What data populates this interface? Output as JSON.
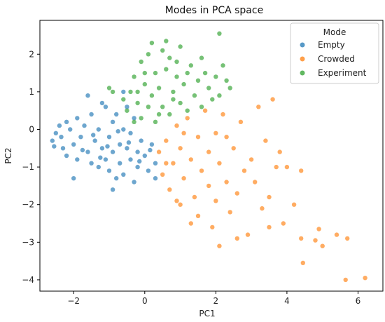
{
  "chart_data": {
    "type": "scatter",
    "title": "Modes in PCA space",
    "xlabel": "PC1",
    "ylabel": "PC2",
    "xlim": [
      -2.95,
      6.7
    ],
    "ylim": [
      -4.3,
      2.9
    ],
    "xticks": [
      -2,
      0,
      2,
      4,
      6
    ],
    "yticks": [
      -4,
      -3,
      -2,
      -1,
      0,
      1,
      2
    ],
    "grid": false,
    "legend": {
      "title": "Mode",
      "placement": "top-right"
    },
    "series": [
      {
        "name": "Empty",
        "color": "#1f77b4",
        "points": [
          [
            -2.6,
            -0.3
          ],
          [
            -2.5,
            -0.1
          ],
          [
            -2.4,
            0.1
          ],
          [
            -2.3,
            -0.5
          ],
          [
            -2.2,
            0.2
          ],
          [
            -2.2,
            -0.7
          ],
          [
            -2.1,
            0.0
          ],
          [
            -2.0,
            -0.4
          ],
          [
            -1.9,
            0.3
          ],
          [
            -1.9,
            -0.8
          ],
          [
            -1.8,
            -0.2
          ],
          [
            -1.7,
            0.1
          ],
          [
            -1.6,
            -0.6
          ],
          [
            -1.5,
            -0.9
          ],
          [
            -1.5,
            0.4
          ],
          [
            -1.4,
            -0.3
          ],
          [
            -1.3,
            0.0
          ],
          [
            -1.3,
            -1.0
          ],
          [
            -1.2,
            -0.5
          ],
          [
            -1.1,
            0.6
          ],
          [
            -1.1,
            -0.8
          ],
          [
            -1.0,
            -0.2
          ],
          [
            -1.0,
            -1.1
          ],
          [
            -0.9,
            0.2
          ],
          [
            -0.9,
            -0.6
          ],
          [
            -0.8,
            -1.3
          ],
          [
            -0.8,
            0.4
          ],
          [
            -0.7,
            -0.4
          ],
          [
            -0.7,
            -0.9
          ],
          [
            -0.6,
            0.0
          ],
          [
            -0.6,
            -1.2
          ],
          [
            -0.5,
            -0.5
          ],
          [
            -0.5,
            0.6
          ],
          [
            -0.4,
            -0.8
          ],
          [
            -0.4,
            -0.1
          ],
          [
            -0.3,
            -1.4
          ],
          [
            -0.3,
            0.3
          ],
          [
            -0.2,
            -0.6
          ],
          [
            -0.2,
            -1.0
          ],
          [
            -0.1,
            -0.3
          ],
          [
            0.0,
            -0.7
          ],
          [
            0.1,
            -1.1
          ],
          [
            0.2,
            -0.4
          ],
          [
            0.3,
            -0.9
          ],
          [
            0.3,
            -1.3
          ],
          [
            -1.6,
            0.9
          ],
          [
            -1.2,
            0.7
          ],
          [
            -0.6,
            1.0
          ],
          [
            -2.0,
            -1.3
          ],
          [
            -0.9,
            -1.6
          ],
          [
            -2.55,
            -0.45
          ],
          [
            -2.35,
            -0.2
          ],
          [
            -1.75,
            -0.55
          ],
          [
            -1.45,
            -0.15
          ],
          [
            -1.05,
            -0.45
          ],
          [
            -0.75,
            -0.05
          ],
          [
            -0.45,
            -0.35
          ],
          [
            -0.15,
            -0.85
          ],
          [
            0.15,
            -0.55
          ],
          [
            -1.25,
            -0.75
          ]
        ]
      },
      {
        "name": "Crowded",
        "color": "#ff7f0e",
        "points": [
          [
            0.4,
            -0.6
          ],
          [
            0.5,
            -1.2
          ],
          [
            0.6,
            -0.3
          ],
          [
            0.7,
            -1.6
          ],
          [
            0.8,
            -0.9
          ],
          [
            0.9,
            0.1
          ],
          [
            1.0,
            -2.0
          ],
          [
            1.0,
            -0.5
          ],
          [
            1.1,
            -1.3
          ],
          [
            1.2,
            0.3
          ],
          [
            1.3,
            -0.8
          ],
          [
            1.4,
            -1.8
          ],
          [
            1.5,
            -0.2
          ],
          [
            1.5,
            -2.3
          ],
          [
            1.6,
            -1.1
          ],
          [
            1.7,
            0.5
          ],
          [
            1.8,
            -0.6
          ],
          [
            1.8,
            -1.5
          ],
          [
            1.9,
            -2.6
          ],
          [
            2.0,
            -0.1
          ],
          [
            2.0,
            -1.9
          ],
          [
            2.1,
            -0.9
          ],
          [
            2.2,
            0.4
          ],
          [
            2.3,
            -1.4
          ],
          [
            2.4,
            -2.2
          ],
          [
            2.5,
            -0.5
          ],
          [
            2.6,
            -1.7
          ],
          [
            2.7,
            0.2
          ],
          [
            2.8,
            -1.1
          ],
          [
            2.9,
            -2.8
          ],
          [
            3.0,
            -0.8
          ],
          [
            3.1,
            -1.4
          ],
          [
            3.2,
            0.6
          ],
          [
            3.3,
            -2.1
          ],
          [
            3.4,
            -0.3
          ],
          [
            3.5,
            -1.8
          ],
          [
            3.6,
            0.8
          ],
          [
            3.7,
            -1.0
          ],
          [
            3.9,
            -2.5
          ],
          [
            4.0,
            -1.0
          ],
          [
            4.2,
            -2.0
          ],
          [
            4.4,
            -1.1
          ],
          [
            4.4,
            -2.9
          ],
          [
            4.45,
            -3.55
          ],
          [
            4.9,
            -2.65
          ],
          [
            5.0,
            -3.1
          ],
          [
            5.4,
            -2.8
          ],
          [
            5.65,
            -4.0
          ],
          [
            6.2,
            -3.95
          ],
          [
            5.7,
            -2.9
          ],
          [
            3.5,
            -2.6
          ],
          [
            4.8,
            -2.95
          ],
          [
            2.1,
            -3.1
          ],
          [
            1.3,
            -2.5
          ],
          [
            0.9,
            -1.9
          ],
          [
            2.6,
            -2.9
          ],
          [
            3.8,
            -0.6
          ],
          [
            1.1,
            -0.1
          ],
          [
            0.6,
            -0.9
          ],
          [
            2.3,
            -0.2
          ]
        ]
      },
      {
        "name": "Experiment",
        "color": "#2ca02c",
        "points": [
          [
            -0.5,
            0.5
          ],
          [
            -0.4,
            1.0
          ],
          [
            -0.3,
            0.2
          ],
          [
            -0.3,
            1.4
          ],
          [
            -0.2,
            0.7
          ],
          [
            -0.1,
            1.8
          ],
          [
            -0.1,
            0.3
          ],
          [
            0.0,
            1.2
          ],
          [
            0.1,
            0.6
          ],
          [
            0.1,
            2.0
          ],
          [
            0.2,
            0.9
          ],
          [
            0.3,
            1.5
          ],
          [
            0.3,
            0.2
          ],
          [
            0.4,
            1.1
          ],
          [
            0.5,
            2.1
          ],
          [
            0.5,
            0.6
          ],
          [
            0.6,
            1.6
          ],
          [
            0.7,
            0.4
          ],
          [
            0.7,
            1.9
          ],
          [
            0.8,
            1.0
          ],
          [
            0.9,
            1.4
          ],
          [
            1.0,
            0.7
          ],
          [
            1.0,
            2.2
          ],
          [
            1.1,
            1.2
          ],
          [
            1.2,
            0.5
          ],
          [
            1.3,
            1.7
          ],
          [
            1.4,
            0.9
          ],
          [
            1.5,
            1.3
          ],
          [
            1.6,
            0.6
          ],
          [
            1.7,
            1.5
          ],
          [
            1.8,
            1.1
          ],
          [
            1.9,
            0.8
          ],
          [
            2.0,
            1.4
          ],
          [
            2.1,
            0.9
          ],
          [
            2.2,
            1.7
          ],
          [
            2.4,
            1.1
          ],
          [
            -0.9,
            1.0
          ],
          [
            -1.0,
            1.1
          ],
          [
            0.2,
            2.3
          ],
          [
            0.6,
            2.35
          ],
          [
            2.1,
            2.55
          ],
          [
            2.3,
            1.3
          ],
          [
            -0.2,
            1.0
          ],
          [
            0.4,
            0.4
          ],
          [
            0.9,
            1.8
          ],
          [
            1.6,
            1.9
          ],
          [
            -0.6,
            0.8
          ],
          [
            0.0,
            1.5
          ],
          [
            0.8,
            0.8
          ],
          [
            1.2,
            1.5
          ]
        ]
      }
    ]
  }
}
